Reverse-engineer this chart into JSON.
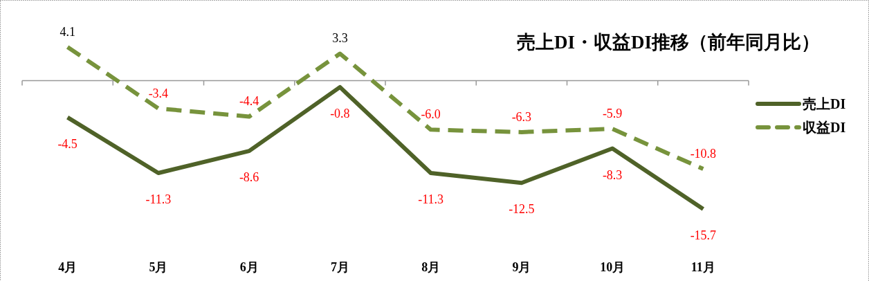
{
  "chart_data": {
    "type": "line",
    "title": "売上DI・収益DI推移（前年同月比）",
    "categories": [
      "4月",
      "5月",
      "6月",
      "7月",
      "8月",
      "9月",
      "10月",
      "11月"
    ],
    "series": [
      {
        "name": "売上DI",
        "color": "#4f6228",
        "line_style": "solid",
        "values": [
          -4.5,
          -11.3,
          -8.6,
          -0.8,
          -11.3,
          -12.5,
          -8.3,
          -15.7
        ],
        "value_labels": [
          "-4.5",
          "-11.3",
          "-8.6",
          "-0.8",
          "-11.3",
          "-12.5",
          "-8.3",
          "-15.7"
        ]
      },
      {
        "name": "収益DI",
        "color": "#77933c",
        "line_style": "dashed",
        "values": [
          4.1,
          -3.4,
          -4.4,
          3.3,
          -6.0,
          -6.3,
          -5.9,
          -10.8
        ],
        "value_labels": [
          "4.1",
          "-3.4",
          "-4.4",
          "3.3",
          "-6.0",
          "-6.3",
          "-5.9",
          "-10.8"
        ]
      }
    ],
    "legend": "right",
    "marker": "none"
  }
}
